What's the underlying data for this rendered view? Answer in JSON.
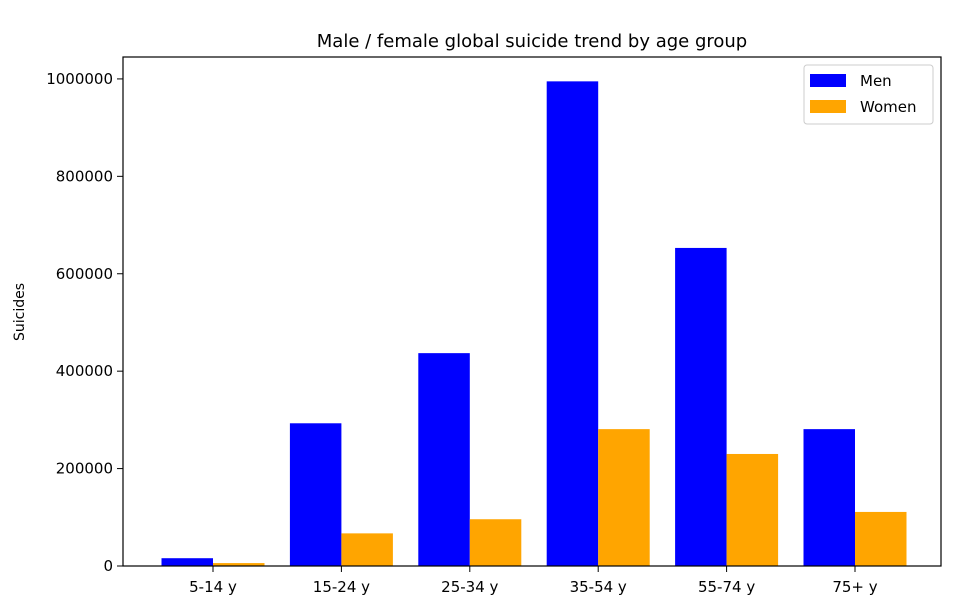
{
  "chart_data": {
    "type": "bar",
    "title": "Male / female global suicide trend by age group",
    "xlabel": "",
    "ylabel": "Suicides",
    "categories": [
      "5-14 y",
      "15-24 y",
      "25-34 y",
      "35-54 y",
      "55-74 y",
      "75+ y"
    ],
    "series": [
      {
        "name": "Men",
        "color": "#0000ff",
        "values": [
          16000,
          293000,
          437000,
          995000,
          653000,
          281000
        ]
      },
      {
        "name": "Women",
        "color": "#ffa500",
        "values": [
          6000,
          67000,
          96000,
          281000,
          230000,
          111000
        ]
      }
    ],
    "ylim": [
      0,
      1045000
    ],
    "yticks": [
      0,
      200000,
      400000,
      600000,
      800000,
      1000000
    ],
    "ytick_labels": [
      "0",
      "200000",
      "400000",
      "600000",
      "800000",
      "1000000"
    ],
    "grid": false,
    "legend": "top-right"
  }
}
